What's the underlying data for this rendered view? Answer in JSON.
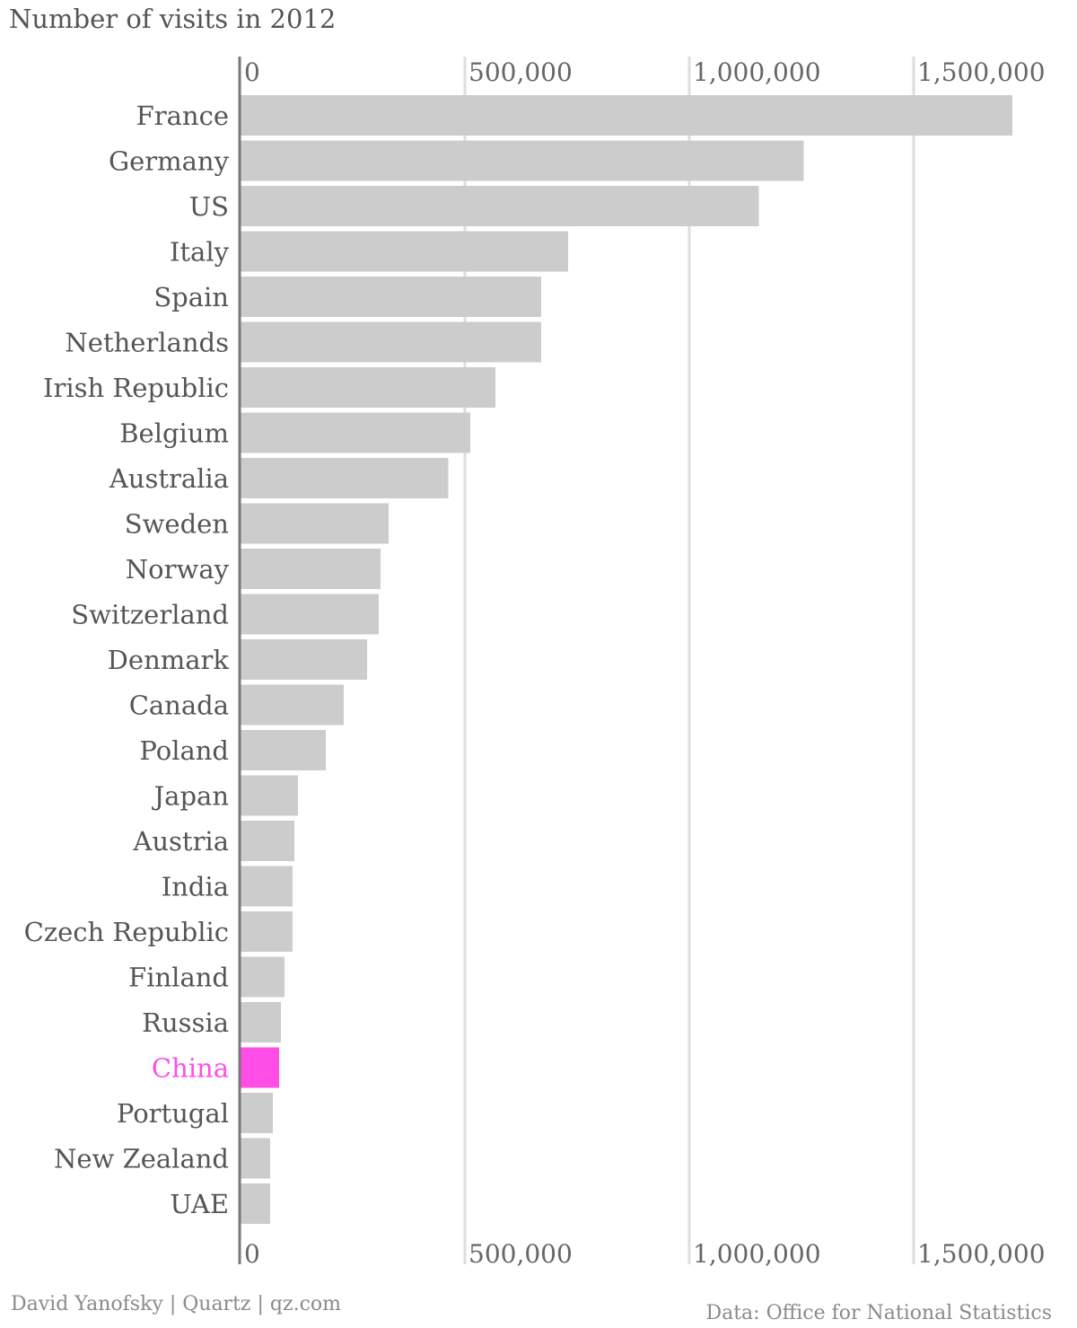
{
  "chart_data": {
    "type": "bar",
    "orientation": "horizontal",
    "title": "Number of visits in 2012",
    "categories": [
      "France",
      "Germany",
      "US",
      "Italy",
      "Spain",
      "Netherlands",
      "Irish Republic",
      "Belgium",
      "Australia",
      "Sweden",
      "Norway",
      "Switzerland",
      "Denmark",
      "Canada",
      "Poland",
      "Japan",
      "Austria",
      "India",
      "Czech Republic",
      "Finland",
      "Russia",
      "China",
      "Portugal",
      "New Zealand",
      "UAE"
    ],
    "values": [
      1720000,
      1255000,
      1155000,
      730000,
      670000,
      670000,
      568000,
      512000,
      463000,
      330000,
      312000,
      308000,
      282000,
      230000,
      190000,
      128000,
      120000,
      116000,
      116000,
      98000,
      90000,
      86000,
      72000,
      66000,
      66000
    ],
    "highlight": "China",
    "xlim": [
      0,
      1750000
    ],
    "xticks": [
      0,
      500000,
      1000000,
      1500000
    ],
    "xtick_labels": [
      "0",
      "500,000",
      "1,000,000",
      "1,500,000"
    ],
    "xaxis_labels_position": "top-and-bottom",
    "grid": "vertical",
    "legend": "none",
    "colors": {
      "bar": "#cccccc",
      "highlight": "#ff4de6",
      "grid": "#dedede",
      "axis": "#777777",
      "label": "#555555",
      "tick_label": "#666666"
    }
  },
  "credits": {
    "source": "Data: Office for National Statistics",
    "byline": "David Yanofsky | Quartz | qz.com"
  }
}
